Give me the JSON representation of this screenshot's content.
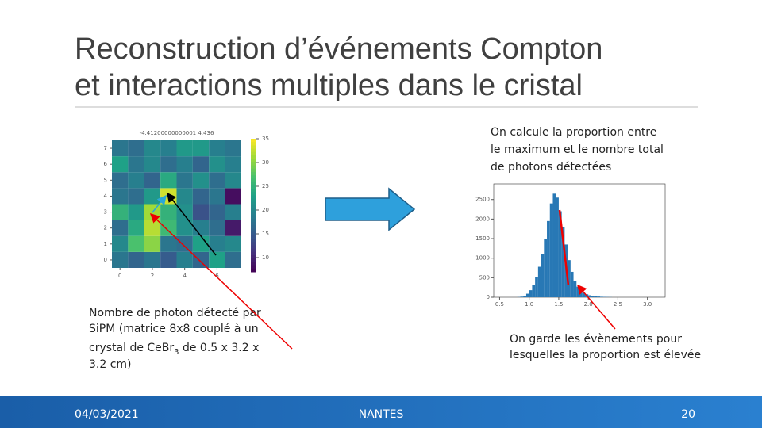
{
  "title": {
    "line1": "Reconstruction d’événements Compton",
    "line2": "et interactions multiples dans le cristal"
  },
  "note_right": {
    "lines": [
      "On calcule la proportion entre",
      "le maximum et le nombre total",
      "de photons détectées"
    ]
  },
  "caption_left": {
    "lines": [
      "Nombre de photon détecté par",
      "SiPM (matrice 8x8 couplé à un"
    ],
    "before": "crystal de CeBr",
    "sub": "3",
    "after": " de 0.5 x 3.2 x",
    "last": "3.2 cm)"
  },
  "caption_right": {
    "lines": [
      "On garde les évènements pour",
      "lesquelles la proportion est élevée"
    ]
  },
  "footer": {
    "date": "04/03/2021",
    "place": "NANTES",
    "page": "20"
  },
  "chart_data": [
    {
      "type": "heatmap",
      "title": "-4.41200000000001 4.436",
      "colormap": "viridis",
      "values": [
        [
          18,
          16,
          18,
          15,
          19,
          16,
          23,
          17
        ],
        [
          20,
          27,
          30,
          18,
          17,
          23,
          19,
          20
        ],
        [
          17,
          24,
          32,
          26,
          21,
          19,
          17,
          9
        ],
        [
          25,
          22,
          31,
          25,
          21,
          14,
          16,
          19
        ],
        [
          18,
          17,
          22,
          33,
          20,
          16,
          18,
          8
        ],
        [
          17,
          19,
          16,
          24,
          18,
          21,
          17,
          20
        ],
        [
          23,
          18,
          20,
          17,
          19,
          16,
          21,
          19
        ],
        [
          18,
          17,
          20,
          19,
          22,
          22,
          19,
          18
        ]
      ],
      "xlim": [
        -0.5,
        7.5
      ],
      "xticks": [
        0,
        2,
        4,
        6
      ],
      "ylim": [
        -0.5,
        7.5
      ],
      "yticks": [
        0,
        1,
        2,
        3,
        4,
        5,
        6,
        7
      ],
      "clim": [
        7,
        35
      ],
      "cticks": [
        10,
        15,
        20,
        25,
        30,
        35
      ]
    },
    {
      "type": "histogram",
      "color": "#2878b5",
      "bins": [
        0.8,
        0.85,
        0.9,
        0.95,
        1.0,
        1.05,
        1.1,
        1.15,
        1.2,
        1.25,
        1.3,
        1.35,
        1.4,
        1.45,
        1.5,
        1.55,
        1.6,
        1.65,
        1.7,
        1.75,
        1.8,
        1.85,
        1.9,
        1.95,
        2.0,
        2.05,
        2.1,
        2.15,
        2.2,
        2.25,
        2.3,
        2.35,
        2.4
      ],
      "values": [
        5,
        15,
        40,
        90,
        180,
        320,
        520,
        780,
        1100,
        1500,
        1950,
        2400,
        2650,
        2550,
        2200,
        1800,
        1350,
        950,
        650,
        420,
        270,
        170,
        110,
        75,
        50,
        35,
        25,
        18,
        12,
        8,
        5,
        3
      ],
      "xlim": [
        0.4,
        3.3
      ],
      "xticks": [
        0.5,
        {
          "value": 1,
          "label": "1.0"
        },
        1.5,
        {
          "value": 2,
          "label": "2.0"
        },
        2.5,
        {
          "value": 3,
          "label": "3.0"
        }
      ],
      "ylim": [
        0,
        2900
      ],
      "yticks": [
        0,
        500,
        1000,
        1500,
        2000,
        2500
      ]
    }
  ]
}
